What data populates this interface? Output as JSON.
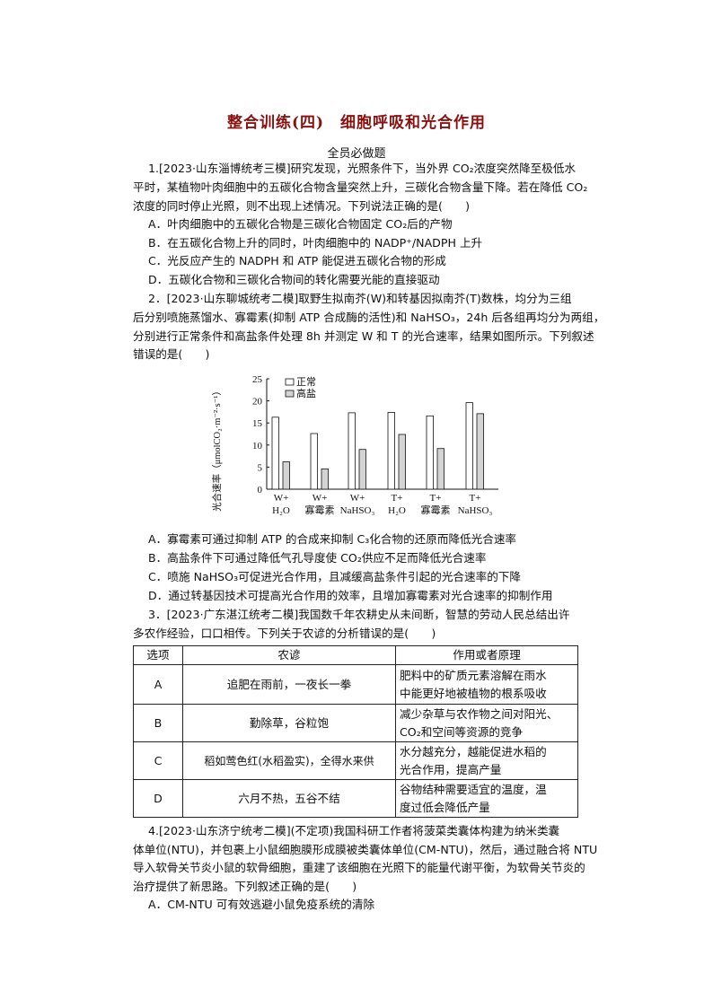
{
  "title": "整合训练(四)　细胞呼吸和光合作用",
  "section": "全员必做题",
  "q1": {
    "lines": [
      "1.[2023·山东淄博统考三模]研究发现，光照条件下，当外界 CO₂浓度突然降至极低水",
      "平时，某植物叶肉细胞中的五碳化合物含量突然上升，三碳化合物含量下降。若在降低 CO₂",
      "浓度的同时停止光照，则不出现上述情况。下列说法正确的是(　　)"
    ],
    "options": [
      "A．叶肉细胞中的五碳化合物是三碳化合物固定 CO₂后的产物",
      "B．在五碳化合物上升的同时，叶肉细胞中的 NADP⁺/NADPH 上升",
      "C．光反应产生的 NADPH 和 ATP 能促进五碳化合物的形成",
      "D．五碳化合物和三碳化合物间的转化需要光能的直接驱动"
    ]
  },
  "q2": {
    "lines": [
      "2．[2023·山东聊城统考二模]取野生拟南芥(W)和转基因拟南芥(T)数株，均分为三组",
      "后分别喷施蒸馏水、寡霉素(抑制 ATP 合成酶的活性)和 NaHSO₃，24h 后各组再均分为两组，",
      "分别进行正常条件和高盐条件处理 8h 并测定 W 和 T 的光合速率，结果如图所示。下列叙述",
      "错误的是(　　)"
    ],
    "options": [
      "A．寡霉素可通过抑制 ATP 的合成来抑制 C₃化合物的还原而降低光合速率",
      "B．高盐条件下可通过降低气孔导度使 CO₂供应不足而降低光合速率",
      "C．喷施 NaHSO₃可促进光合作用，且减缓高盐条件引起的光合速率的下降",
      "D．通过转基因技术可提高光合作用的效率，且增加寡霉素对光合速率的抑制作用"
    ]
  },
  "chart_data": {
    "type": "bar",
    "categories": [
      [
        "W+",
        "H₂O"
      ],
      [
        "W+",
        "寡霉素"
      ],
      [
        "W+",
        "NaHSO₃"
      ],
      [
        "T+",
        "H₂O"
      ],
      [
        "T+",
        "寡霉素"
      ],
      [
        "T+",
        "NaHSO₃"
      ]
    ],
    "series": [
      {
        "name": "正常",
        "values": [
          16.3,
          12.6,
          17.3,
          17.4,
          16.6,
          19.6
        ],
        "color": "#ffffff"
      },
      {
        "name": "高盐",
        "values": [
          6.2,
          4.6,
          9.0,
          12.4,
          9.2,
          17.1
        ],
        "color": "#d4d4d4"
      }
    ],
    "ylabel": "光合速率（μmolCO₂·m⁻²·s⁻¹）",
    "yticks": [
      0,
      5,
      10,
      15,
      20,
      25
    ],
    "ylim": [
      0,
      25
    ],
    "legend": "top-left",
    "grid": false
  },
  "q3": {
    "lines": [
      "3．[2023·广东湛江统考二模]我国数千年农耕史从未间断，智慧的劳动人民总结出许",
      "多农作经验，口口相传。下列关于农谚的分析错误的是(　　)"
    ],
    "table": {
      "headers": [
        "选项",
        "农谚",
        "作用或者原理"
      ],
      "rows": [
        [
          "A",
          "追肥在雨前，一夜长一拳",
          "肥料中的矿质元素溶解在雨水",
          "中能更好地被植物的根系吸收"
        ],
        [
          "B",
          "勤除草，谷粒饱",
          "减少杂草与农作物之间对阳光、",
          "CO₂和空间等资源的竞争"
        ],
        [
          "C",
          "稻如莺色红(水稻盈实)，全得水来供",
          "水分越充分，越能促进水稻的",
          "光合作用，提高产量"
        ],
        [
          "D",
          "六月不热，五谷不结",
          "谷物结种需要适宜的温度，温",
          "度过低会降低产量"
        ]
      ]
    }
  },
  "q4": {
    "lines": [
      "4.[2023·山东济宁统考二模](不定项)我国科研工作者将菠菜类囊体构建为纳米类囊",
      "体单位(NTU)，并包裹上小鼠细胞膜形成膜被类囊体单位(CM-NTU)，然后，通过融合将 NTU",
      "导入软骨关节炎小鼠的软骨细胞，重建了该细胞在光照下的能量代谢平衡，为软骨关节炎的",
      "治疗提供了新思路。下列叙述正确的是(　　)"
    ],
    "options": [
      "A．CM-NTU 可有效逃避小鼠免疫系统的清除"
    ]
  }
}
